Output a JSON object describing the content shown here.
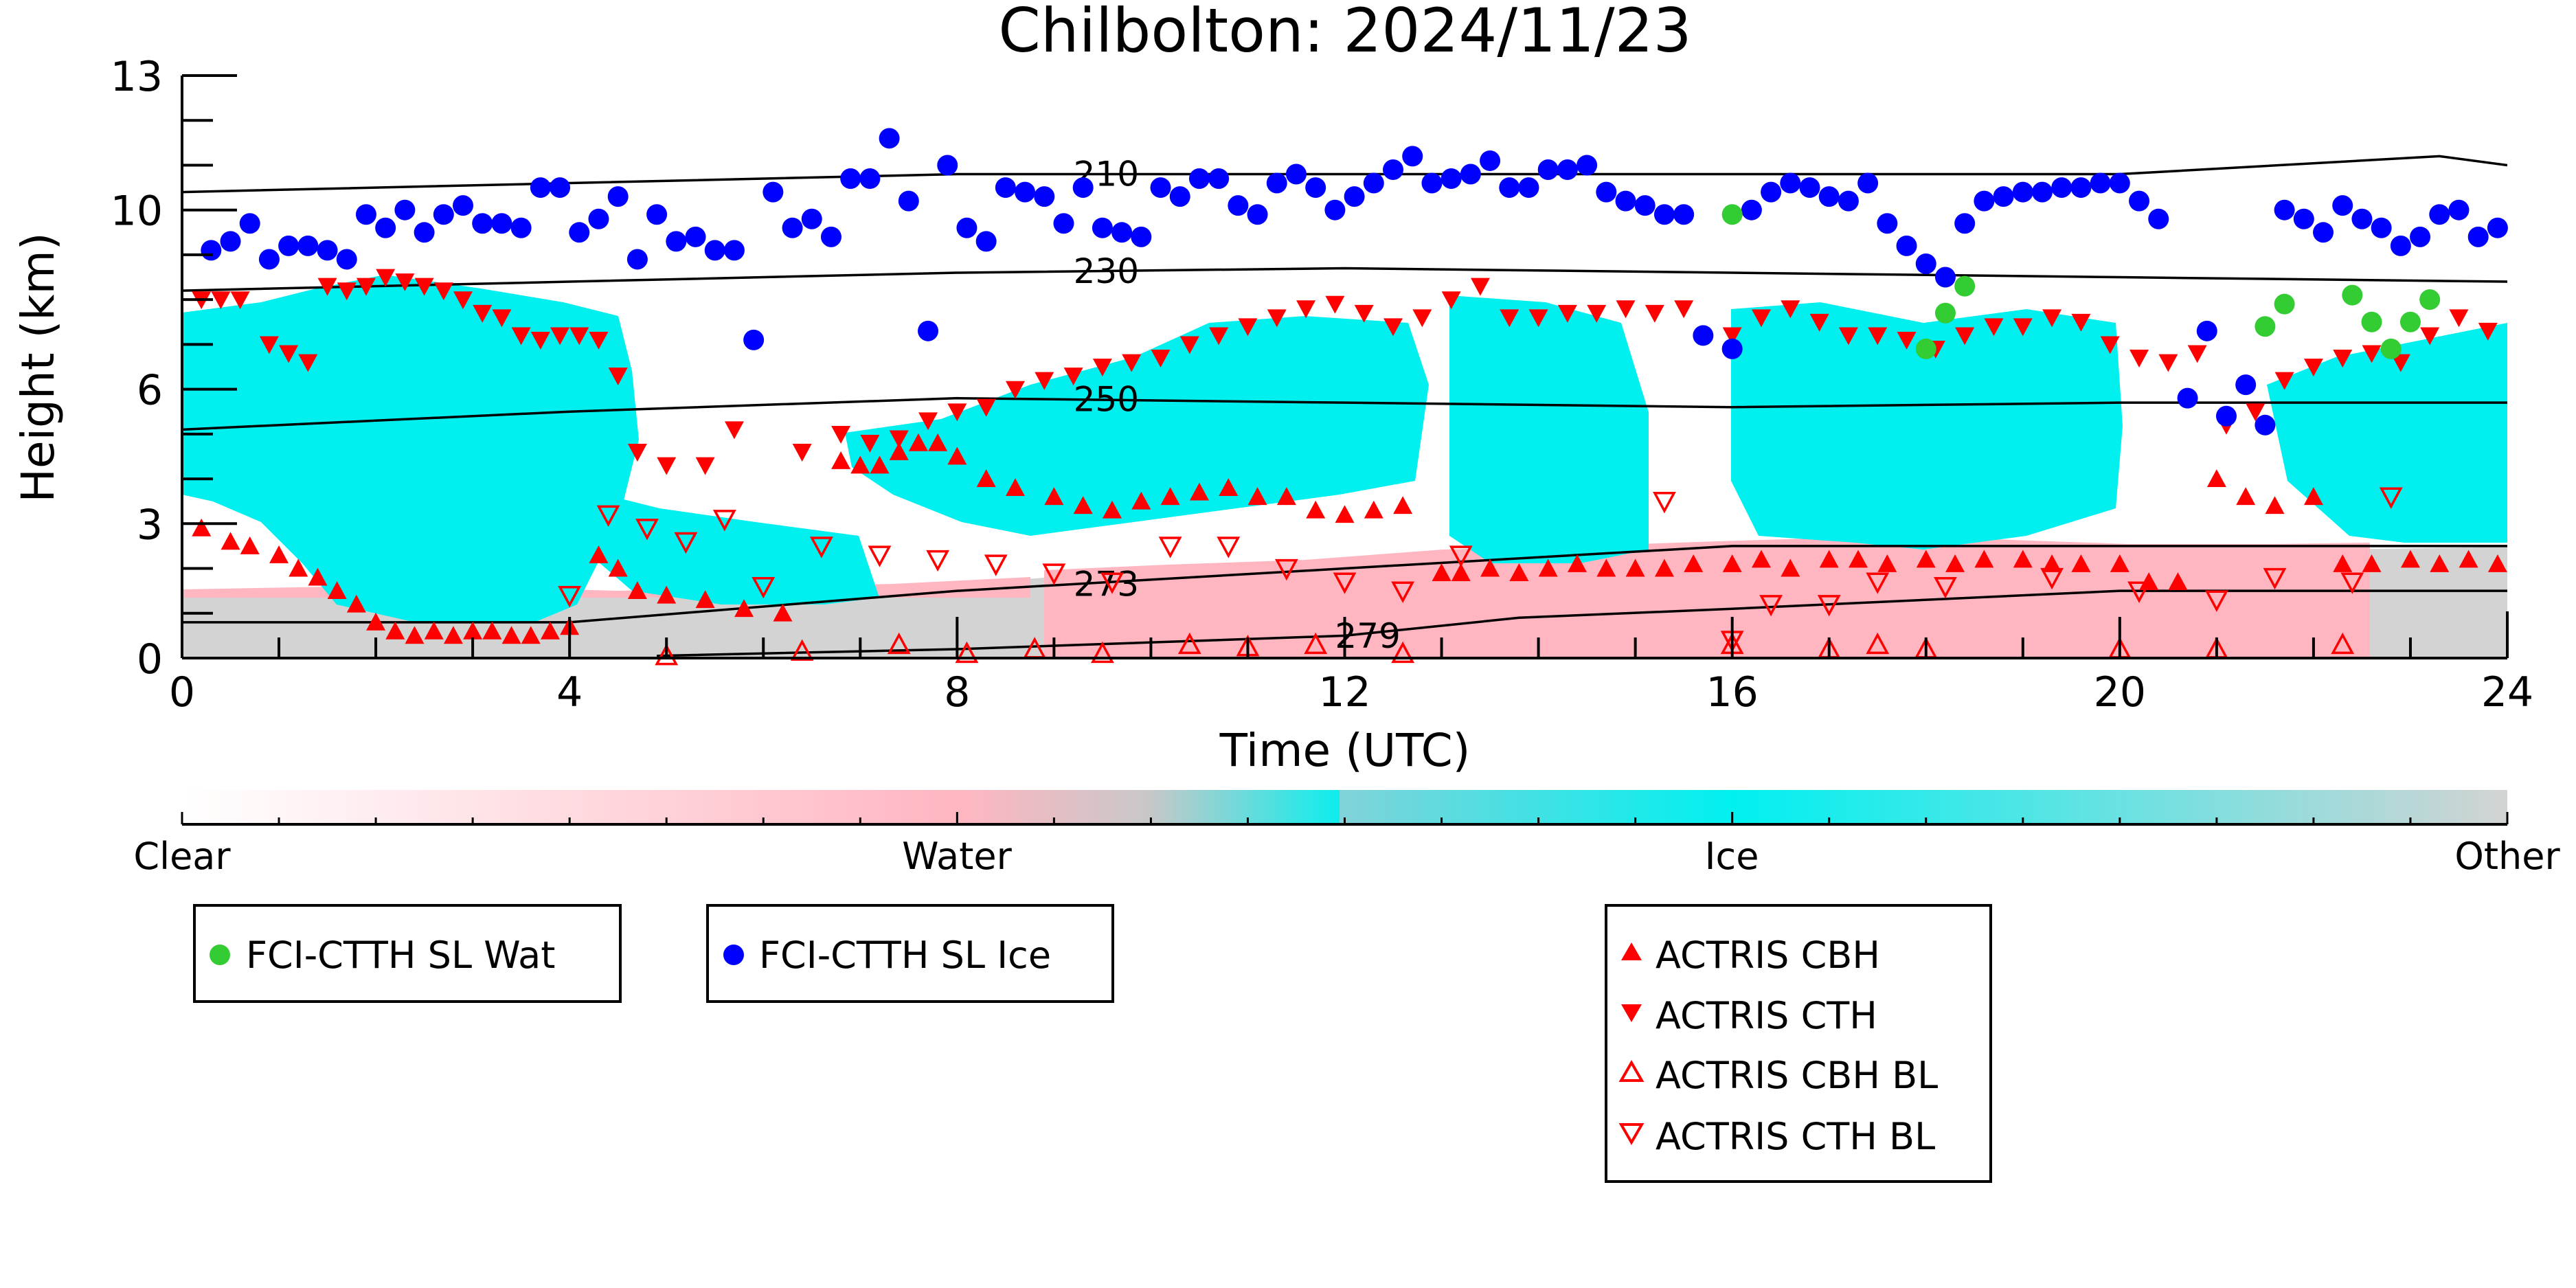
{
  "chart_data": {
    "type": "scatter",
    "title": "Chilbolton: 2024/11/23",
    "xlabel": "Time (UTC)",
    "ylabel": "Height (km)",
    "xlim": [
      0,
      24
    ],
    "ylim": [
      0,
      13
    ],
    "x_ticks": [
      0,
      4,
      8,
      12,
      16,
      20,
      24
    ],
    "y_ticks": [
      0,
      3,
      6,
      10,
      13
    ],
    "grid": false,
    "colorbar": {
      "labels": [
        "Clear",
        "Water",
        "Ice",
        "Other"
      ],
      "colors": [
        "#ffffff",
        "#ffb6c1",
        "#00f0f0",
        "#d3d3d3"
      ]
    },
    "contours": [
      {
        "label": "210",
        "x": [
          0,
          4,
          8,
          12,
          16,
          20,
          23.3,
          24
        ],
        "y": [
          10.4,
          10.6,
          10.8,
          10.8,
          10.8,
          10.8,
          11.2,
          11.0
        ]
      },
      {
        "label": "230",
        "x": [
          0,
          4,
          8,
          12,
          16,
          20,
          24
        ],
        "y": [
          8.2,
          8.4,
          8.6,
          8.7,
          8.6,
          8.5,
          8.4
        ]
      },
      {
        "label": "250",
        "x": [
          0,
          2,
          4,
          8,
          12,
          16,
          20,
          24
        ],
        "y": [
          5.1,
          5.3,
          5.5,
          5.8,
          5.7,
          5.6,
          5.7,
          5.7
        ]
      },
      {
        "label": "273",
        "x": [
          0,
          4,
          8,
          12,
          16,
          20,
          24
        ],
        "y": [
          0.8,
          0.8,
          1.5,
          2.0,
          2.5,
          2.5,
          2.5
        ]
      },
      {
        "label": "279",
        "x": [
          4.9,
          8,
          12,
          13.8,
          16,
          20,
          24
        ],
        "y": [
          0.05,
          0.2,
          0.5,
          0.9,
          1.1,
          1.5,
          1.5
        ]
      }
    ],
    "series": [
      {
        "name": "FCI-CTTH SL Wat",
        "marker": "circle",
        "color": "#33cc33",
        "x": [
          16.0,
          18.0,
          18.2,
          18.4,
          21.5,
          21.7,
          22.4,
          22.6,
          22.8,
          23.0,
          23.2
        ],
        "y": [
          9.9,
          6.9,
          7.7,
          8.3,
          7.4,
          7.9,
          8.1,
          7.5,
          6.9,
          7.5,
          8.0
        ]
      },
      {
        "name": "FCI-CTTH SL Ice",
        "marker": "circle",
        "color": "#0000ff",
        "x": [
          0.3,
          0.5,
          0.7,
          0.9,
          1.1,
          1.3,
          1.5,
          1.7,
          1.9,
          2.1,
          2.3,
          2.5,
          2.7,
          2.9,
          3.1,
          3.3,
          3.5,
          3.7,
          3.9,
          4.1,
          4.3,
          4.5,
          4.7,
          4.9,
          5.1,
          5.3,
          5.5,
          5.7,
          5.9,
          6.1,
          6.3,
          6.5,
          6.7,
          6.9,
          7.1,
          7.3,
          7.5,
          7.7,
          7.9,
          8.1,
          8.3,
          8.5,
          8.7,
          8.9,
          9.1,
          9.3,
          9.5,
          9.7,
          9.9,
          10.1,
          10.3,
          10.5,
          10.7,
          10.9,
          11.1,
          11.3,
          11.5,
          11.7,
          11.9,
          12.1,
          12.3,
          12.5,
          12.7,
          12.9,
          13.1,
          13.3,
          13.5,
          13.7,
          13.9,
          14.1,
          14.3,
          14.5,
          14.7,
          14.9,
          15.1,
          15.3,
          15.5,
          15.7,
          16.0,
          16.2,
          16.4,
          16.6,
          16.8,
          17.0,
          17.2,
          17.4,
          17.6,
          17.8,
          18.0,
          18.2,
          18.4,
          18.6,
          18.8,
          19.0,
          19.2,
          19.4,
          19.6,
          19.8,
          20.0,
          20.2,
          20.4,
          20.7,
          20.9,
          21.1,
          21.3,
          21.5,
          21.7,
          21.9,
          22.1,
          22.3,
          22.5,
          22.7,
          22.9,
          23.1,
          23.3,
          23.5,
          23.7,
          23.9
        ],
        "y": [
          9.1,
          9.3,
          9.7,
          8.9,
          9.2,
          9.2,
          9.1,
          8.9,
          9.9,
          9.6,
          10.0,
          9.5,
          9.9,
          10.1,
          9.7,
          9.7,
          9.6,
          10.5,
          10.5,
          9.5,
          9.8,
          10.3,
          8.9,
          9.9,
          9.3,
          9.4,
          9.1,
          9.1,
          7.1,
          10.4,
          9.6,
          9.8,
          9.4,
          10.7,
          10.7,
          11.6,
          10.2,
          7.3,
          11.0,
          9.6,
          9.3,
          10.5,
          10.4,
          10.3,
          9.7,
          10.5,
          9.6,
          9.5,
          9.4,
          10.5,
          10.3,
          10.7,
          10.7,
          10.1,
          9.9,
          10.6,
          10.8,
          10.5,
          10.0,
          10.3,
          10.6,
          10.9,
          11.2,
          10.6,
          10.7,
          10.8,
          11.1,
          10.5,
          10.5,
          10.9,
          10.9,
          11.0,
          10.4,
          10.2,
          10.1,
          9.9,
          9.9,
          7.2,
          6.9,
          10.0,
          10.4,
          10.6,
          10.5,
          10.3,
          10.2,
          10.6,
          9.7,
          9.2,
          8.8,
          8.5,
          9.7,
          10.2,
          10.3,
          10.4,
          10.4,
          10.5,
          10.5,
          10.6,
          10.6,
          10.2,
          9.8,
          5.8,
          7.3,
          5.4,
          6.1,
          5.2,
          10.0,
          9.8,
          9.5,
          10.1,
          9.8,
          9.6,
          9.2,
          9.4,
          9.9,
          10.0,
          9.4,
          9.6
        ]
      },
      {
        "name": "ACTRIS CBH",
        "marker": "triangle-up",
        "color": "#ff0000",
        "filled": true,
        "x": [
          0.2,
          0.5,
          0.7,
          1.0,
          1.2,
          1.4,
          1.6,
          1.8,
          2.0,
          2.2,
          2.4,
          2.6,
          2.8,
          3.0,
          3.2,
          3.4,
          3.6,
          3.8,
          4.0,
          4.3,
          4.5,
          4.7,
          5.0,
          5.4,
          5.8,
          6.2,
          6.8,
          7.0,
          7.2,
          7.4,
          7.6,
          7.8,
          8.0,
          8.3,
          8.6,
          9.0,
          9.3,
          9.6,
          9.9,
          10.2,
          10.5,
          10.8,
          11.1,
          11.4,
          11.7,
          12.0,
          12.3,
          12.6,
          13.0,
          13.2,
          13.5,
          13.8,
          14.1,
          14.4,
          14.7,
          15.0,
          15.3,
          15.6,
          16.0,
          16.3,
          16.6,
          17.0,
          17.3,
          17.6,
          18.0,
          18.3,
          18.6,
          19.0,
          19.3,
          19.6,
          20.0,
          20.3,
          20.6,
          21.0,
          21.3,
          21.6,
          22.0,
          22.3,
          22.6,
          23.0,
          23.3,
          23.6,
          23.9
        ],
        "y": [
          2.9,
          2.6,
          2.5,
          2.3,
          2.0,
          1.8,
          1.5,
          1.2,
          0.8,
          0.6,
          0.5,
          0.6,
          0.5,
          0.6,
          0.6,
          0.5,
          0.5,
          0.6,
          0.7,
          2.3,
          2.0,
          1.5,
          1.4,
          1.3,
          1.1,
          1.0,
          4.4,
          4.3,
          4.3,
          4.6,
          4.8,
          4.8,
          4.5,
          4.0,
          3.8,
          3.6,
          3.4,
          3.3,
          3.5,
          3.6,
          3.7,
          3.8,
          3.6,
          3.6,
          3.3,
          3.2,
          3.3,
          3.4,
          1.9,
          1.9,
          2.0,
          1.9,
          2.0,
          2.1,
          2.0,
          2.0,
          2.0,
          2.1,
          2.1,
          2.2,
          2.0,
          2.2,
          2.2,
          2.1,
          2.2,
          2.1,
          2.2,
          2.2,
          2.1,
          2.1,
          2.1,
          1.7,
          1.7,
          4.0,
          3.6,
          3.4,
          3.6,
          2.1,
          2.1,
          2.2,
          2.1,
          2.2,
          2.1
        ]
      },
      {
        "name": "ACTRIS CTH",
        "marker": "triangle-down",
        "color": "#ff0000",
        "filled": true,
        "x": [
          0.2,
          0.4,
          0.6,
          0.9,
          1.1,
          1.3,
          1.5,
          1.7,
          1.9,
          2.1,
          2.3,
          2.5,
          2.7,
          2.9,
          3.1,
          3.3,
          3.5,
          3.7,
          3.9,
          4.1,
          4.3,
          4.5,
          4.7,
          5.0,
          5.4,
          5.7,
          6.4,
          6.8,
          7.1,
          7.4,
          7.7,
          8.0,
          8.3,
          8.6,
          8.9,
          9.2,
          9.5,
          9.8,
          10.1,
          10.4,
          10.7,
          11.0,
          11.3,
          11.6,
          11.9,
          12.2,
          12.5,
          12.8,
          13.1,
          13.4,
          13.7,
          14.0,
          14.3,
          14.6,
          14.9,
          15.2,
          15.5,
          16.0,
          16.3,
          16.6,
          16.9,
          17.2,
          17.5,
          17.8,
          18.1,
          18.4,
          18.7,
          19.0,
          19.3,
          19.6,
          19.9,
          20.2,
          20.5,
          20.8,
          21.1,
          21.4,
          21.7,
          22.0,
          22.3,
          22.6,
          22.9,
          23.2,
          23.5,
          23.8
        ],
        "y": [
          8.0,
          8.0,
          8.0,
          7.0,
          6.8,
          6.6,
          8.3,
          8.2,
          8.3,
          8.5,
          8.4,
          8.3,
          8.2,
          8.0,
          7.7,
          7.6,
          7.2,
          7.1,
          7.2,
          7.2,
          7.1,
          6.3,
          4.6,
          4.3,
          4.3,
          5.1,
          4.6,
          5.0,
          4.8,
          4.9,
          5.3,
          5.5,
          5.6,
          6.0,
          6.2,
          6.3,
          6.5,
          6.6,
          6.7,
          7.0,
          7.2,
          7.4,
          7.6,
          7.8,
          7.9,
          7.7,
          7.4,
          7.6,
          8.0,
          8.3,
          7.6,
          7.6,
          7.7,
          7.7,
          7.8,
          7.7,
          7.8,
          7.2,
          7.6,
          7.8,
          7.5,
          7.2,
          7.2,
          7.1,
          6.9,
          7.2,
          7.4,
          7.4,
          7.6,
          7.5,
          7.0,
          6.7,
          6.6,
          6.8,
          5.2,
          5.5,
          6.2,
          6.5,
          6.7,
          6.8,
          6.6,
          7.2,
          7.6,
          7.3
        ]
      },
      {
        "name": "ACTRIS CBH BL",
        "marker": "triangle-up",
        "color": "#ff0000",
        "filled": false,
        "x": [
          5.0,
          6.4,
          7.4,
          8.1,
          8.8,
          9.5,
          10.4,
          11.0,
          11.7,
          12.6,
          16.0,
          17.0,
          17.5,
          18.0,
          20.0,
          21.0,
          22.3
        ],
        "y": [
          0.05,
          0.15,
          0.3,
          0.1,
          0.2,
          0.1,
          0.3,
          0.25,
          0.3,
          0.1,
          0.3,
          0.2,
          0.3,
          0.2,
          0.2,
          0.2,
          0.3
        ]
      },
      {
        "name": "ACTRIS CTH BL",
        "marker": "triangle-down",
        "color": "#ff0000",
        "filled": false,
        "x": [
          4.0,
          4.4,
          4.8,
          5.2,
          5.6,
          6.0,
          6.6,
          7.2,
          7.8,
          8.4,
          9.0,
          9.6,
          10.2,
          10.8,
          11.4,
          12.0,
          12.6,
          13.2,
          15.3,
          16.0,
          16.4,
          17.0,
          17.5,
          18.2,
          19.3,
          20.2,
          21.0,
          21.6,
          22.4,
          22.8
        ],
        "y": [
          1.4,
          3.2,
          2.9,
          2.6,
          3.1,
          1.6,
          2.5,
          2.3,
          2.2,
          2.1,
          1.9,
          1.7,
          2.5,
          2.5,
          2.0,
          1.7,
          1.5,
          2.3,
          3.5,
          0.4,
          1.2,
          1.2,
          1.7,
          1.6,
          1.8,
          1.5,
          1.3,
          1.8,
          1.7,
          3.6
        ]
      }
    ]
  }
}
